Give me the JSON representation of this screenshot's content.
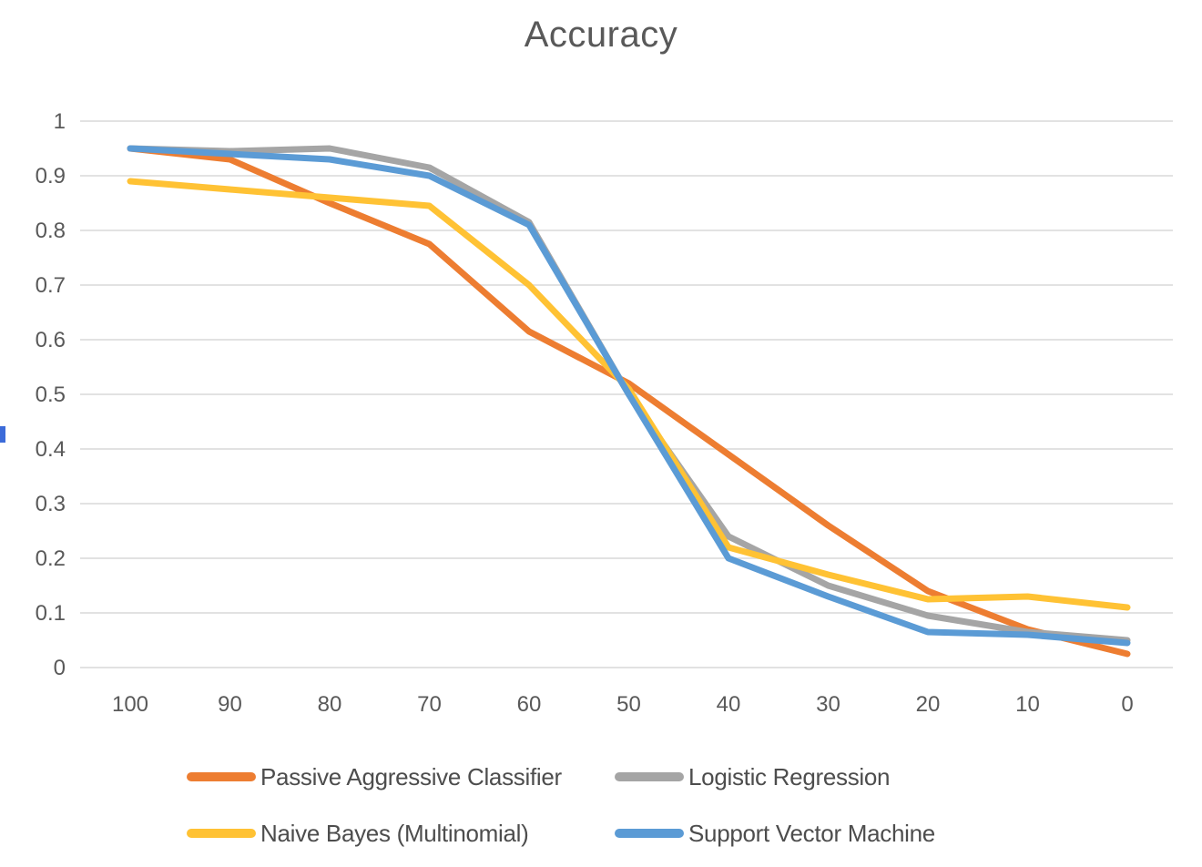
{
  "page": {
    "background": "#ffffff"
  },
  "artifact": {
    "color": "#3c6bd9"
  },
  "chart_data": {
    "type": "line",
    "title": "Accuracy",
    "title_color": "#595959",
    "xlabel": "",
    "ylabel": "",
    "x_categories": [
      "100",
      "90",
      "80",
      "70",
      "60",
      "50",
      "40",
      "30",
      "20",
      "10",
      "0"
    ],
    "x_axis_reversed": true,
    "y_ticks": [
      "1",
      "0.9",
      "0.8",
      "0.7",
      "0.6",
      "0.5",
      "0.4",
      "0.3",
      "0.2",
      "0.1",
      "0"
    ],
    "ylim": [
      0,
      1
    ],
    "grid": "horizontal",
    "gridline_color": "#e2e2e2",
    "tick_label_color": "#595959",
    "legend_position": "bottom",
    "legend_text_color": "#4d4d4d",
    "series": [
      {
        "name": "Passive Aggressive Classifier",
        "color": "#ED7D31",
        "values": [
          0.95,
          0.93,
          0.85,
          0.775,
          0.615,
          0.52,
          0.39,
          0.26,
          0.14,
          0.07,
          0.025
        ]
      },
      {
        "name": "Logistic Regression",
        "color": "#A5A5A5",
        "values": [
          0.95,
          0.945,
          0.95,
          0.915,
          0.815,
          0.5,
          0.24,
          0.15,
          0.095,
          0.065,
          0.05
        ]
      },
      {
        "name": "Naive Bayes (Multinomial)",
        "color": "#FFC234",
        "values": [
          0.89,
          0.875,
          0.86,
          0.845,
          0.7,
          0.51,
          0.22,
          0.17,
          0.125,
          0.13,
          0.11
        ]
      },
      {
        "name": "Support Vector Machine",
        "color": "#5B9BD5",
        "values": [
          0.95,
          0.94,
          0.93,
          0.9,
          0.81,
          0.5,
          0.2,
          0.13,
          0.065,
          0.06,
          0.045
        ]
      }
    ]
  }
}
